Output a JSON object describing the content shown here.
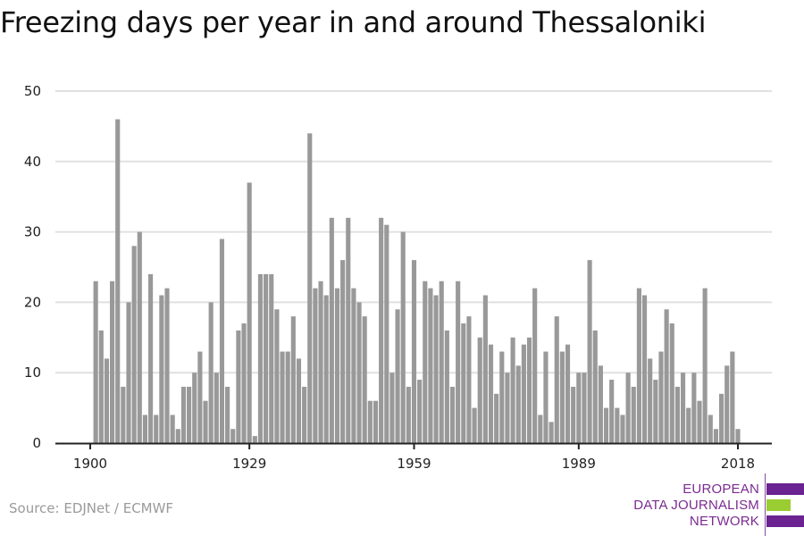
{
  "title": "Freezing days per year in and around Thessaloniki",
  "source": "Source: EDJNet / ECMWF",
  "logo": {
    "lines": [
      "EUROPEAN",
      "DATA JOURNALISM",
      "NETWORK"
    ],
    "colors": {
      "purple": "#6a2390",
      "green": "#9acd32",
      "text": "#7b2b90"
    }
  },
  "chart_data": {
    "type": "bar",
    "title": "Freezing days per year in and around Thessaloniki",
    "xlabel": "",
    "ylabel": "",
    "ylim": [
      0,
      50
    ],
    "yticks": [
      0,
      10,
      20,
      30,
      40,
      50
    ],
    "xticks": [
      1900,
      1929,
      1959,
      1989,
      2018
    ],
    "xlim": [
      1900,
      2018
    ],
    "grid": true,
    "bar_color": "#999999",
    "x": [
      1901,
      1902,
      1903,
      1904,
      1905,
      1906,
      1907,
      1908,
      1909,
      1910,
      1911,
      1912,
      1913,
      1914,
      1915,
      1916,
      1917,
      1918,
      1919,
      1920,
      1921,
      1922,
      1923,
      1924,
      1925,
      1926,
      1927,
      1928,
      1929,
      1930,
      1931,
      1932,
      1933,
      1934,
      1935,
      1936,
      1937,
      1938,
      1939,
      1940,
      1941,
      1942,
      1943,
      1944,
      1945,
      1946,
      1947,
      1948,
      1949,
      1950,
      1951,
      1952,
      1953,
      1954,
      1955,
      1956,
      1957,
      1958,
      1959,
      1960,
      1961,
      1962,
      1963,
      1964,
      1965,
      1966,
      1967,
      1968,
      1969,
      1970,
      1971,
      1972,
      1973,
      1974,
      1975,
      1976,
      1977,
      1978,
      1979,
      1980,
      1981,
      1982,
      1983,
      1984,
      1985,
      1986,
      1987,
      1988,
      1989,
      1990,
      1991,
      1992,
      1993,
      1994,
      1995,
      1996,
      1997,
      1998,
      1999,
      2000,
      2001,
      2002,
      2003,
      2004,
      2005,
      2006,
      2007,
      2008,
      2009,
      2010,
      2011,
      2012,
      2013,
      2014,
      2015,
      2016,
      2017,
      2018
    ],
    "values": [
      23,
      16,
      12,
      23,
      46,
      8,
      20,
      28,
      30,
      4,
      24,
      4,
      21,
      22,
      4,
      2,
      8,
      8,
      10,
      13,
      6,
      20,
      10,
      29,
      8,
      2,
      16,
      17,
      37,
      1,
      24,
      24,
      24,
      19,
      13,
      13,
      18,
      12,
      8,
      44,
      22,
      23,
      21,
      32,
      22,
      26,
      32,
      22,
      20,
      18,
      6,
      6,
      32,
      31,
      10,
      19,
      30,
      8,
      26,
      9,
      23,
      22,
      21,
      23,
      16,
      8,
      23,
      17,
      18,
      5,
      15,
      21,
      14,
      7,
      13,
      10,
      15,
      11,
      14,
      15,
      22,
      4,
      13,
      3,
      18,
      13,
      14,
      8,
      10,
      10,
      26,
      16,
      11,
      5,
      9,
      5,
      4,
      10,
      8,
      22,
      21,
      12,
      9,
      13,
      19,
      17,
      8,
      10,
      5,
      10,
      6,
      22,
      4,
      2,
      7,
      11,
      13,
      2
    ]
  }
}
